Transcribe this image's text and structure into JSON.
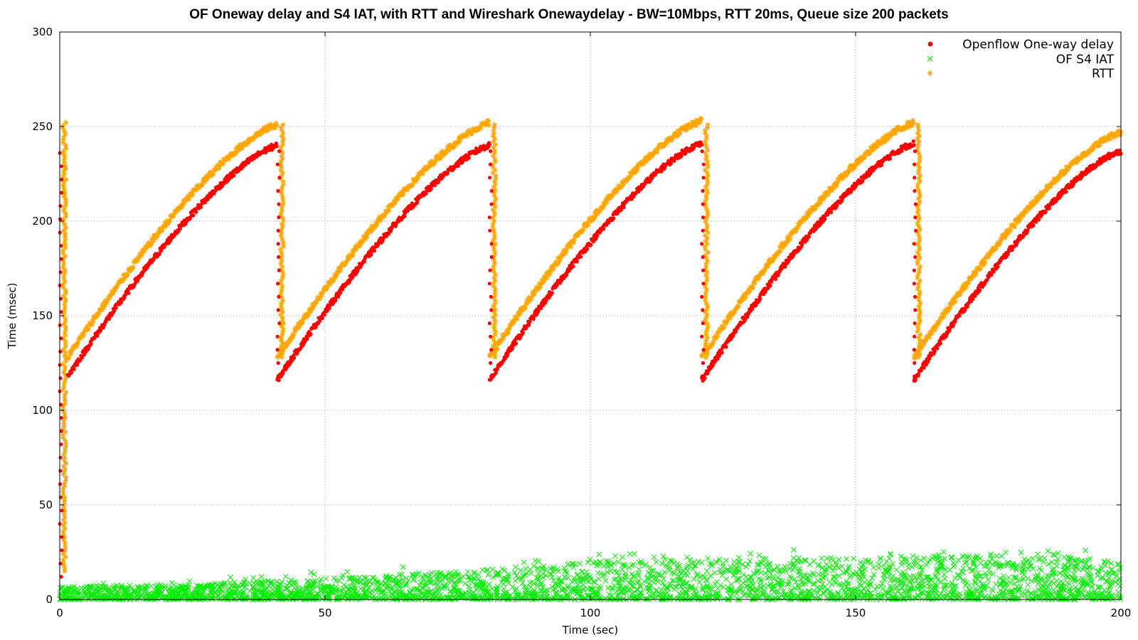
{
  "chart_data": {
    "type": "scatter",
    "title": "OF Oneway delay and S4 IAT, with RTT and Wireshark Onewaydelay - BW=10Mbps, RTT 20ms, Queue size 200 packets",
    "xlabel": "Time (sec)",
    "ylabel": "Time (msec)",
    "xlim": [
      0,
      200
    ],
    "ylim": [
      0,
      300
    ],
    "xticks": [
      0,
      50,
      100,
      150,
      200
    ],
    "yticks": [
      0,
      50,
      100,
      150,
      200,
      250,
      300
    ],
    "grid": true,
    "legend_position": "top-right",
    "series": [
      {
        "name": "Openflow One-way delay",
        "marker": "filled-circle",
        "color": "#ff0000",
        "sawtooth": [
          {
            "x_start": 1.5,
            "x_end": 41,
            "y_start": 118,
            "y_end": 240
          },
          {
            "x_start": 41,
            "x_end": 81,
            "y_start": 116,
            "y_end": 240
          },
          {
            "x_start": 81,
            "x_end": 121,
            "y_start": 116,
            "y_end": 241
          },
          {
            "x_start": 121,
            "x_end": 161,
            "y_start": 116,
            "y_end": 241
          },
          {
            "x_start": 161,
            "x_end": 200,
            "y_start": 116,
            "y_end": 237
          }
        ],
        "drop_x": [
          0,
          41,
          81,
          121,
          161
        ]
      },
      {
        "name": "OF S4 IAT",
        "marker": "x",
        "color": "#00ee00",
        "band": [
          {
            "x": 0,
            "y_max": 7
          },
          {
            "x": 20,
            "y_max": 8
          },
          {
            "x": 50,
            "y_max": 11
          },
          {
            "x": 80,
            "y_max": 16
          },
          {
            "x": 100,
            "y_max": 20
          },
          {
            "x": 120,
            "y_max": 22
          },
          {
            "x": 160,
            "y_max": 23
          },
          {
            "x": 200,
            "y_max": 23
          }
        ]
      },
      {
        "name": "RTT",
        "marker": "asterisk",
        "color": "#ffa500",
        "sawtooth": [
          {
            "x_start": 1.5,
            "x_end": 41,
            "y_start": 128,
            "y_end": 251
          },
          {
            "x_start": 41,
            "x_end": 81,
            "y_start": 128,
            "y_end": 252
          },
          {
            "x_start": 81,
            "x_end": 121,
            "y_start": 128,
            "y_end": 253
          },
          {
            "x_start": 121,
            "x_end": 161,
            "y_start": 128,
            "y_end": 252
          },
          {
            "x_start": 161,
            "x_end": 200,
            "y_start": 128,
            "y_end": 247
          }
        ],
        "drop_x": [
          0,
          41,
          81,
          121,
          161
        ]
      }
    ]
  }
}
